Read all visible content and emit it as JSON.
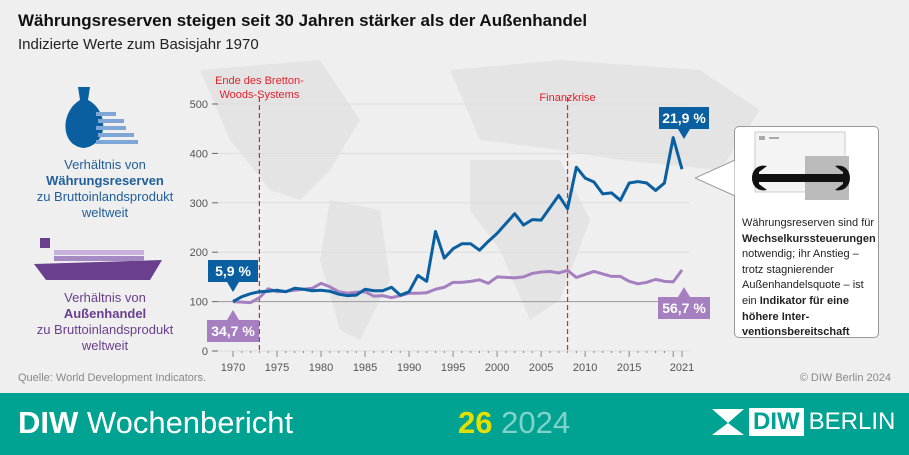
{
  "title": "Währungsreserven steigen seit 30 Jahren stärker als der Außenhandel",
  "subtitle": "Indizierte Werte zum Basisjahr 1970",
  "left": {
    "reserves_pre": "Verhältnis von",
    "reserves_bold": "Währungsreserven",
    "reserves_post": "zu Bruttoinlandsprodukt weltweit",
    "trade_pre": "Verhältnis von",
    "trade_bold": "Außenhandel",
    "trade_post": "zu Bruttoinlandsprodukt weltweit"
  },
  "callout": {
    "t1": "Währungsreserven sind für ",
    "b1": "Wechselkurssteuer­ungen",
    "t2": " notwendig; ihr Anstieg – trotz stagnie­render Außenhandels­quote – ist ein ",
    "b2": "Indikator für eine höhere Inter­ventionsbereitschaft"
  },
  "source": "Quelle: World Development Indicators.",
  "copyright": "© DIW Berlin 2024",
  "footer": {
    "brand_bold": "DIW",
    "brand": "Wochenbericht",
    "issue": "26",
    "year": "2024",
    "logo_box": "DIW",
    "logo_text": "BERLIN"
  },
  "chart_data": {
    "type": "line",
    "ylim": [
      0,
      500
    ],
    "yticks": [
      0,
      100,
      200,
      300,
      400,
      500
    ],
    "xticks": [
      1970,
      1975,
      1980,
      1985,
      1990,
      1995,
      2000,
      2005,
      2010,
      2015,
      2021
    ],
    "x": [
      1970,
      1971,
      1972,
      1973,
      1974,
      1975,
      1976,
      1977,
      1978,
      1979,
      1980,
      1981,
      1982,
      1983,
      1984,
      1985,
      1986,
      1987,
      1988,
      1989,
      1990,
      1991,
      1992,
      1993,
      1994,
      1995,
      1996,
      1997,
      1998,
      1999,
      2000,
      2001,
      2002,
      2003,
      2004,
      2005,
      2006,
      2007,
      2008,
      2009,
      2010,
      2011,
      2012,
      2013,
      2014,
      2015,
      2016,
      2017,
      2018,
      2019,
      2020,
      2021
    ],
    "series": [
      {
        "name": "Währungsreserven",
        "color": "#0a5fa0",
        "values": [
          100,
          110,
          116,
          120,
          121,
          123,
          120,
          127,
          125,
          122,
          123,
          121,
          115,
          112,
          113,
          125,
          122,
          122,
          129,
          113,
          120,
          153,
          141,
          242,
          188,
          207,
          217,
          217,
          204,
          222,
          238,
          258,
          278,
          255,
          266,
          265,
          290,
          315,
          288,
          372,
          350,
          342,
          318,
          320,
          305,
          340,
          343,
          340,
          325,
          340,
          432,
          368
        ]
      },
      {
        "name": "Außenhandel",
        "color": "#a57fc0",
        "values": [
          100,
          99,
          98,
          108,
          126,
          120,
          121,
          123,
          125,
          127,
          137,
          130,
          120,
          117,
          119,
          120,
          111,
          112,
          108,
          112,
          117,
          117,
          118,
          125,
          129,
          139,
          139,
          141,
          144,
          137,
          150,
          149,
          148,
          150,
          157,
          160,
          161,
          158,
          163,
          149,
          155,
          161,
          156,
          151,
          151,
          141,
          136,
          139,
          145,
          141,
          140,
          164
        ]
      }
    ],
    "annotations": [
      {
        "year": 1973,
        "label": "Ende des Bretton-Woods-Systems",
        "l1": "Ende des Bretton-",
        "l2": "Woods-Systems",
        "color": "#e0222e"
      },
      {
        "year": 2008,
        "label": "Finanzkrise",
        "l1": "Finanzkrise",
        "l2": "",
        "color": "#e0222e"
      }
    ],
    "labels": {
      "reserves_1970": "5,9 %",
      "trade_1970": "34,7 %",
      "reserves_2021": "21,9 %",
      "trade_2021": "56,7 %"
    },
    "grid": true,
    "reference_line": 100
  }
}
